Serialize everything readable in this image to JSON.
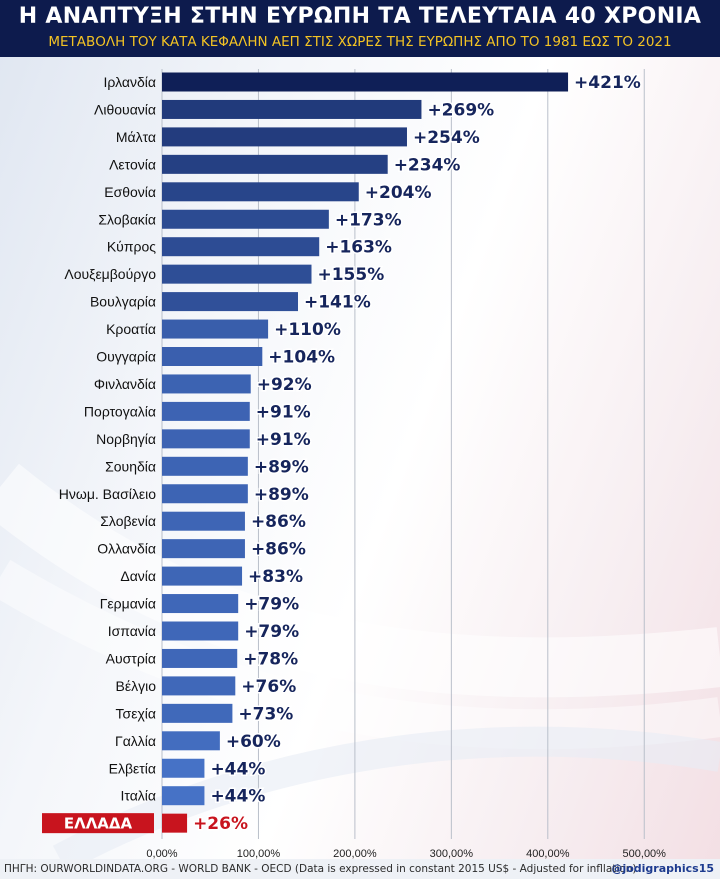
{
  "title": "Η ΑΝΑΠΤΥΞΗ ΣΤΗΝ ΕΥΡΩΠΗ ΤΑ ΤΕΛΕΥΤΑΙΑ 40 ΧΡΟΝΙΑ",
  "subtitle": "ΜΕΤΑΒΟΛΗ ΤΟΥ ΚΑΤΑ ΚΕΦΑΛΗΝ ΑΕΠ ΣΤΙΣ ΧΩΡΕΣ ΤΗΣ ΕΥΡΩΠΗΣ ΑΠΟ ΤΟ 1981 ΕΩΣ ΤΟ 2021",
  "footer": {
    "source": "ΠΗΓΗ: OURWORLDINDATA.ORG - WORLD BANK - OECD (Data is expressed in constant 2015 US$ - Adjusted for infllation)",
    "credit": "@jodigraphics15"
  },
  "colors": {
    "header_bg": "#0d1b4d",
    "subtitle": "#f3c324",
    "bar_dark": "#0f1f57",
    "bar_light": "#4f7fd8",
    "highlight": "#c8141e",
    "value_text": "#16255c"
  },
  "chart_data": {
    "type": "bar",
    "orientation": "horizontal",
    "categories": [
      "Ιρλανδία",
      "Λιθουανία",
      "Μάλτα",
      "Λετονία",
      "Εσθονία",
      "Σλοβακία",
      "Κύπρος",
      "Λουξεμβούργο",
      "Βουλγαρία",
      "Κροατία",
      "Ουγγαρία",
      "Φινλανδία",
      "Πορτογαλία",
      "Νορβηγία",
      "Σουηδία",
      "Ηνωμ. Βασίλειο",
      "Σλοβενία",
      "Ολλανδία",
      "Δανία",
      "Γερμανία",
      "Ισπανία",
      "Αυστρία",
      "Βέλγιο",
      "Τσεχία",
      "Γαλλία",
      "Ελβετία",
      "Ιταλία",
      "ΕΛΛΑΔΑ"
    ],
    "values": [
      421,
      269,
      254,
      234,
      204,
      173,
      163,
      155,
      141,
      110,
      104,
      92,
      91,
      91,
      89,
      89,
      86,
      86,
      83,
      79,
      79,
      78,
      76,
      73,
      60,
      44,
      44,
      26
    ],
    "value_labels": [
      "+421%",
      "+269%",
      "+254%",
      "+234%",
      "+204%",
      "+173%",
      "+163%",
      "+155%",
      "+141%",
      "+110%",
      "+104%",
      "+92%",
      "+91%",
      "+91%",
      "+89%",
      "+89%",
      "+86%",
      "+86%",
      "+83%",
      "+79%",
      "+79%",
      "+78%",
      "+76%",
      "+73%",
      "+60%",
      "+44%",
      "+44%",
      "+26%"
    ],
    "highlight_category": "ΕΛΛΑΔΑ",
    "xlim": [
      0,
      500
    ],
    "xticks": [
      0,
      100,
      200,
      300,
      400,
      500
    ],
    "xtick_labels": [
      "0,00%",
      "100,00%",
      "200,00%",
      "300,00%",
      "400,00%",
      "500,00%"
    ],
    "grid": true,
    "xlabel": "",
    "ylabel": ""
  }
}
